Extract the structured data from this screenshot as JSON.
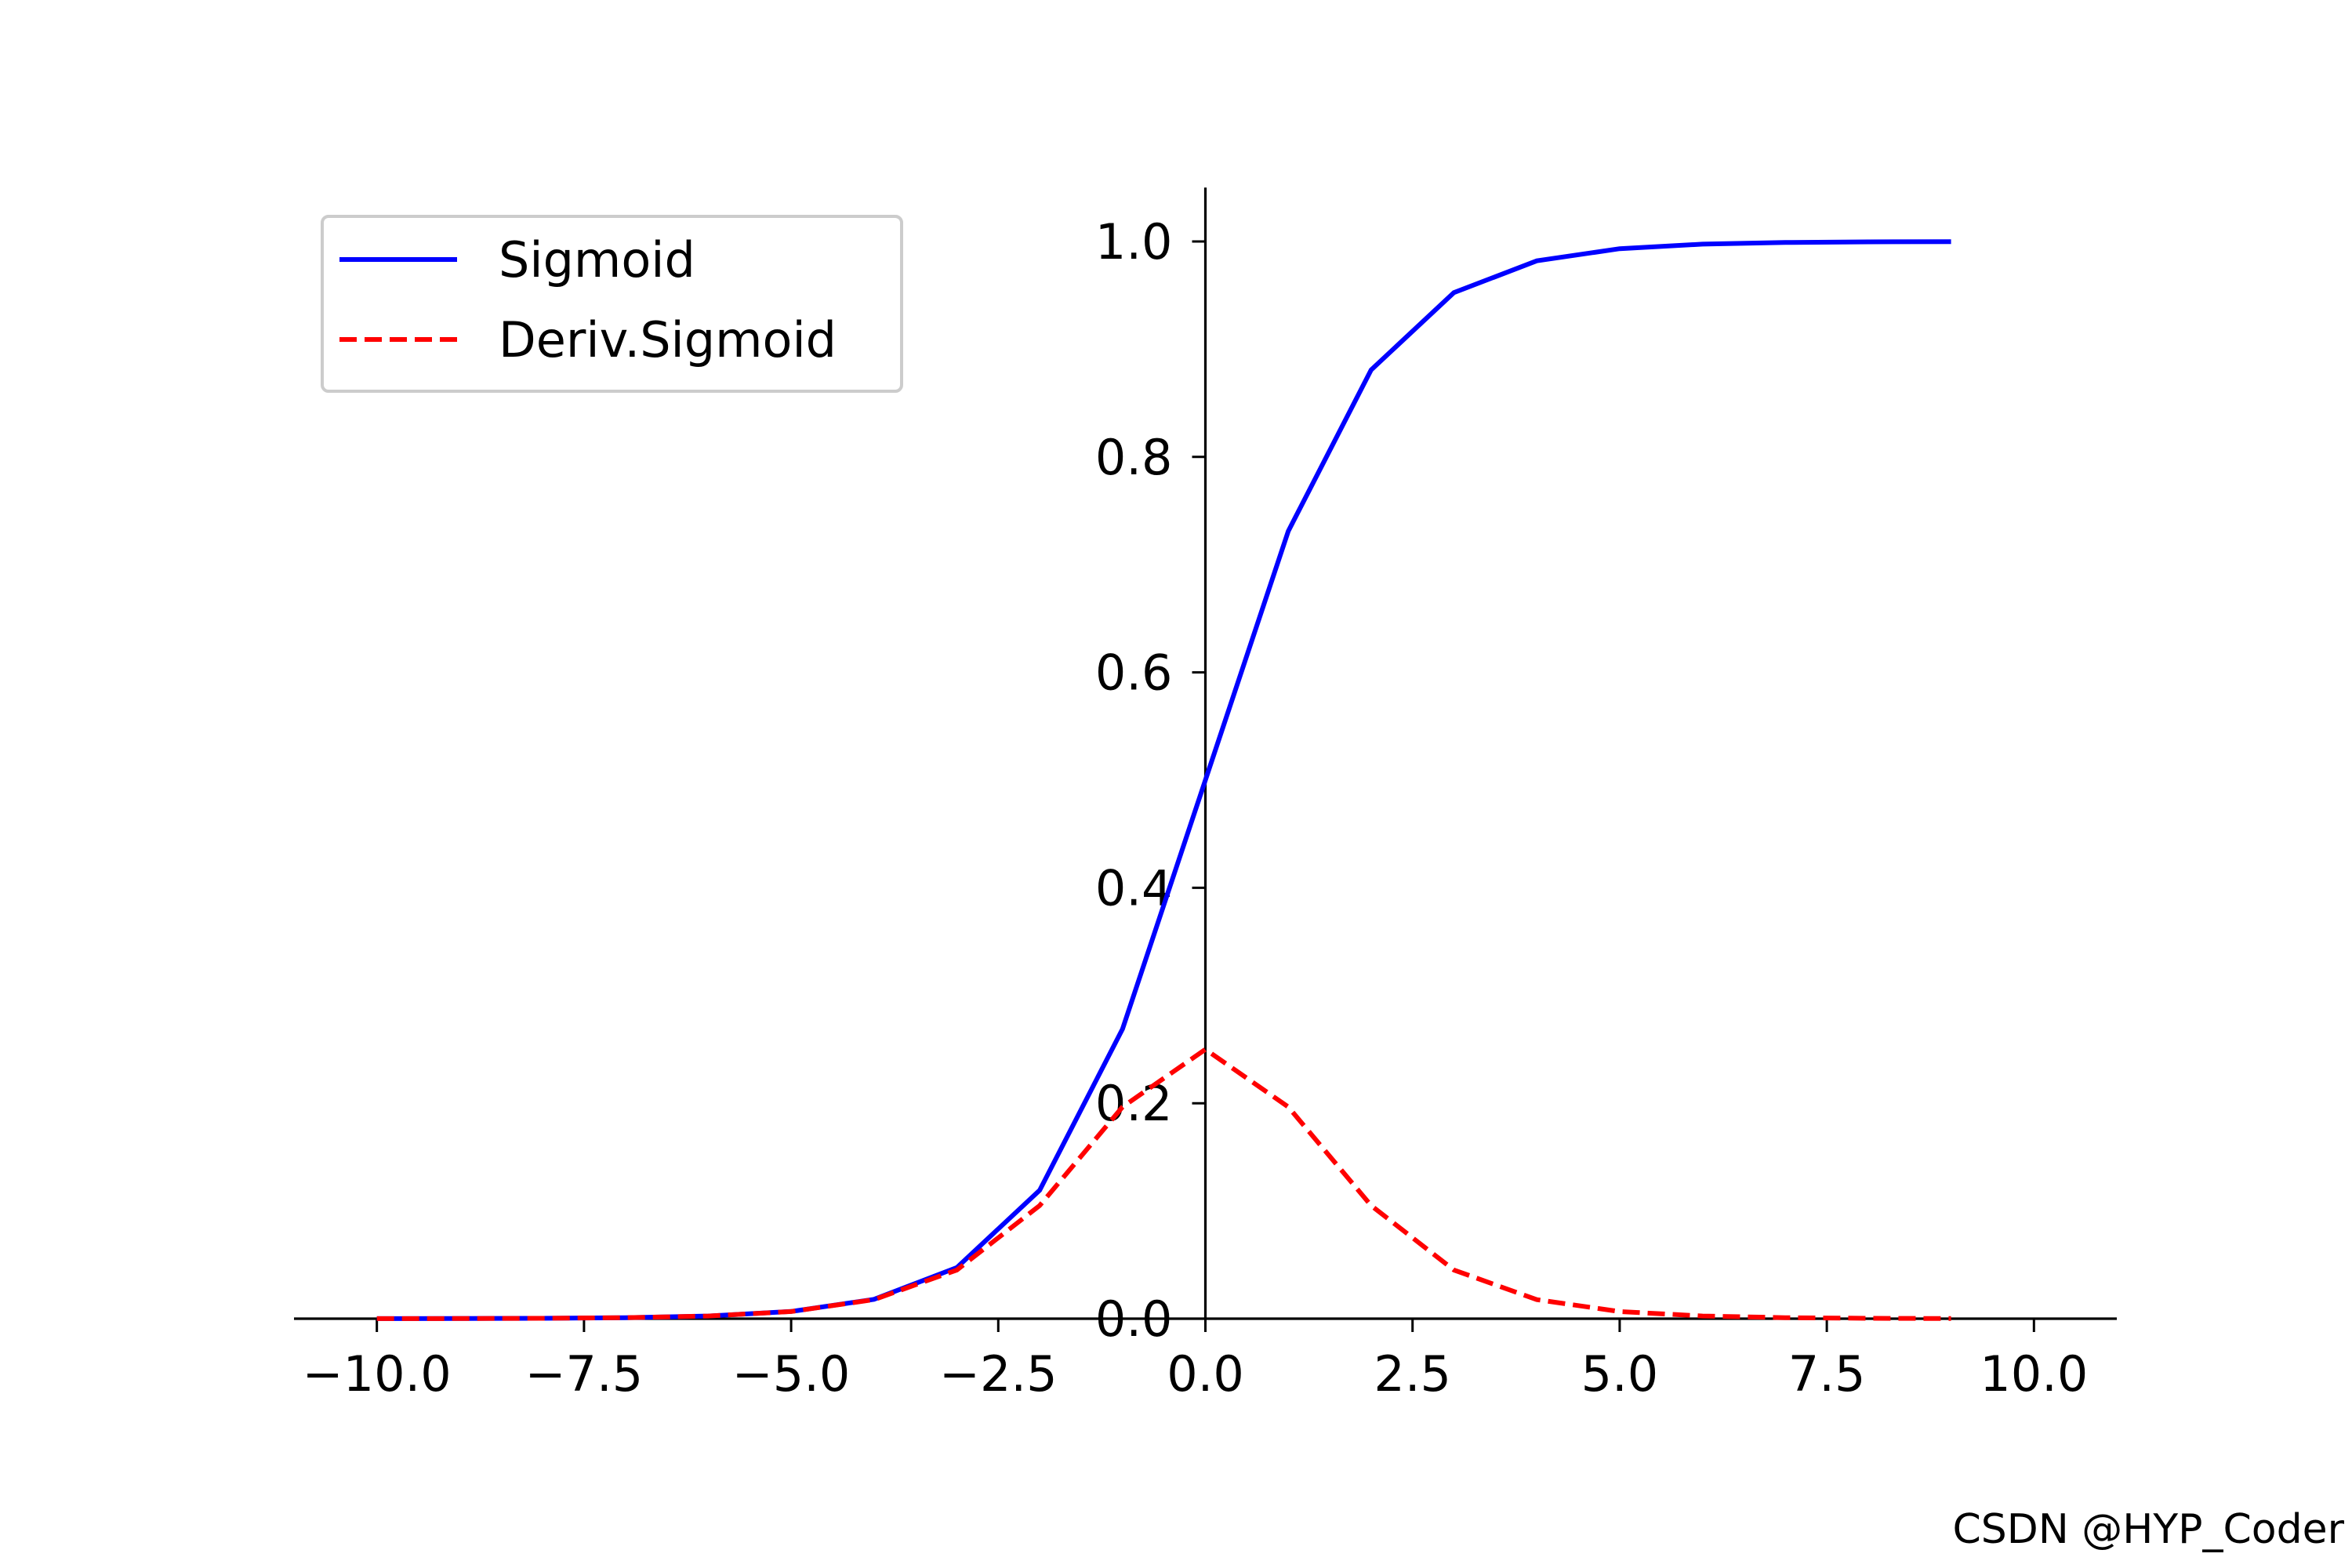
{
  "chart_data": {
    "type": "line",
    "title": "",
    "xlabel": "",
    "ylabel": "",
    "xlim": [
      -11,
      11
    ],
    "ylim": [
      0,
      1.05
    ],
    "grid": false,
    "legend_position": "top-left",
    "x_ticks": [
      "−10.0",
      "−7.5",
      "−5.0",
      "−2.5",
      "0.0",
      "2.5",
      "5.0",
      "7.5",
      "10.0"
    ],
    "x_tick_values": [
      -10,
      -7.5,
      -5,
      -2.5,
      0,
      2.5,
      5,
      7.5,
      10
    ],
    "y_ticks": [
      "0.0",
      "0.2",
      "0.4",
      "0.6",
      "0.8",
      "1.0"
    ],
    "y_tick_values": [
      0,
      0.2,
      0.4,
      0.6,
      0.8,
      1.0
    ],
    "x": [
      -10,
      -9,
      -8,
      -7,
      -6,
      -5,
      -4,
      -3,
      -2,
      -1,
      0,
      1,
      2,
      3,
      4,
      5,
      6,
      7,
      8,
      9
    ],
    "series": [
      {
        "name": "Sigmoid",
        "color": "#0000ff",
        "style": "solid",
        "values": [
          4.54e-05,
          0.0001234,
          0.0003354,
          0.000911,
          0.002473,
          0.006693,
          0.017986,
          0.047426,
          0.119203,
          0.268941,
          0.5,
          0.731059,
          0.880797,
          0.952574,
          0.982014,
          0.993307,
          0.997527,
          0.999089,
          0.999665,
          0.999877
        ]
      },
      {
        "name": "Deriv.Sigmoid",
        "color": "#ff0000",
        "style": "dashed",
        "values": [
          4.54e-05,
          0.0001234,
          0.0003354,
          0.00091,
          0.002467,
          0.006648,
          0.017663,
          0.045177,
          0.104994,
          0.196612,
          0.25,
          0.196612,
          0.104994,
          0.045177,
          0.017663,
          0.006648,
          0.002467,
          0.00091,
          0.0003354,
          0.0001234
        ]
      }
    ]
  },
  "watermark": "CSDN @HYP_Coder"
}
